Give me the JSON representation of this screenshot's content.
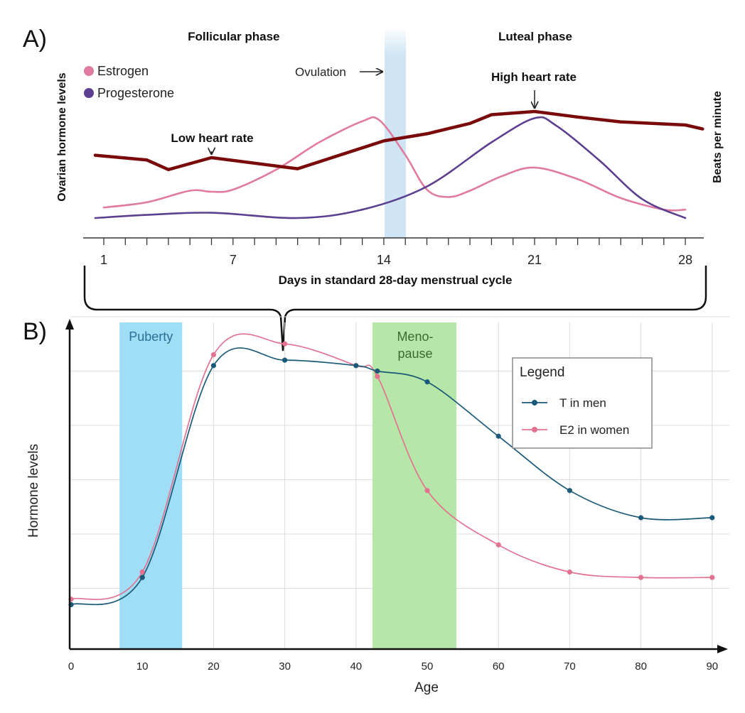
{
  "chart_data": [
    {
      "type": "line",
      "panel_label": "A)",
      "xlabel": "Days in standard 28-day menstrual cycle",
      "ylabel_left": "Ovarian hormone levels",
      "ylabel_right": "Beats per minute",
      "x_ticks": [
        "1",
        "7",
        "14",
        "21",
        "28"
      ],
      "xlim": [
        0,
        29
      ],
      "phases": [
        {
          "label": "Follicular phase",
          "day": 7
        },
        {
          "label": "Luteal phase",
          "day": 21
        }
      ],
      "ovulation_band": {
        "label": "Ovulation",
        "from": 14,
        "to": 15
      },
      "annotations": [
        {
          "text": "Low heart rate",
          "day": 6
        },
        {
          "text": "High heart rate",
          "day": 21
        }
      ],
      "legend": [
        {
          "name": "Estrogen",
          "color": "#e07a9f"
        },
        {
          "name": "Progesterone",
          "color": "#5c3f8f"
        }
      ],
      "series": [
        {
          "name": "Estrogen",
          "color": "#e07a9f",
          "x": [
            1,
            3,
            5,
            6,
            7,
            9,
            11,
            13,
            13.8,
            15,
            16,
            17,
            18,
            19.5,
            21,
            23,
            25,
            27,
            28
          ],
          "y": [
            0.1,
            0.15,
            0.26,
            0.25,
            0.27,
            0.46,
            0.72,
            0.92,
            0.93,
            0.6,
            0.27,
            0.2,
            0.26,
            0.4,
            0.48,
            0.37,
            0.19,
            0.08,
            0.08
          ]
        },
        {
          "name": "Progesterone",
          "color": "#5c3f8f",
          "x": [
            0.6,
            3,
            6,
            10,
            13,
            16,
            19,
            21,
            22,
            24,
            26,
            28
          ],
          "y": [
            0.0,
            0.03,
            0.05,
            0.0,
            0.08,
            0.3,
            0.72,
            0.95,
            0.88,
            0.55,
            0.18,
            0.0
          ]
        },
        {
          "name": "Heart rate",
          "color": "#7a0a0a",
          "x": [
            0.6,
            3,
            4,
            6,
            10,
            14,
            16,
            18,
            19,
            21,
            23,
            25,
            28,
            28.8
          ],
          "y": [
            0.45,
            0.39,
            0.27,
            0.42,
            0.28,
            0.63,
            0.72,
            0.85,
            0.96,
            1.0,
            0.93,
            0.87,
            0.83,
            0.78
          ]
        }
      ]
    },
    {
      "type": "line",
      "panel_label": "B)",
      "xlabel": "Age",
      "ylabel": "Hormone levels",
      "xlim": [
        0,
        92
      ],
      "ylim": [
        0,
        6
      ],
      "x_ticks": [
        0,
        10,
        20,
        30,
        40,
        50,
        60,
        70,
        80,
        90
      ],
      "bands": [
        {
          "label": "Puberty",
          "from": 6.8,
          "to": 15.6,
          "color": "#9bdcf5",
          "text_color": "#2a6f97"
        },
        {
          "label_lines": [
            "Meno-",
            "pause"
          ],
          "from": 42.3,
          "to": 54.1,
          "color": "#b2e5a3",
          "text_color": "#3b6b30"
        }
      ],
      "legend_title": "Legend",
      "series": [
        {
          "name": "T in men",
          "color": "#1a5a78",
          "x": [
            0,
            10,
            20,
            30,
            40,
            43,
            50,
            60,
            70,
            80,
            90
          ],
          "y": [
            0.4,
            0.9,
            4.8,
            4.9,
            4.8,
            4.7,
            4.5,
            3.5,
            2.5,
            2.0,
            2.0
          ]
        },
        {
          "name": "E2 in women",
          "color": "#e27290",
          "x": [
            0,
            10,
            20,
            30,
            40,
            43,
            50,
            60,
            70,
            80,
            90
          ],
          "y": [
            0.5,
            1.0,
            5.0,
            5.2,
            4.8,
            4.6,
            2.5,
            1.5,
            1.0,
            0.9,
            0.9
          ]
        }
      ]
    }
  ]
}
